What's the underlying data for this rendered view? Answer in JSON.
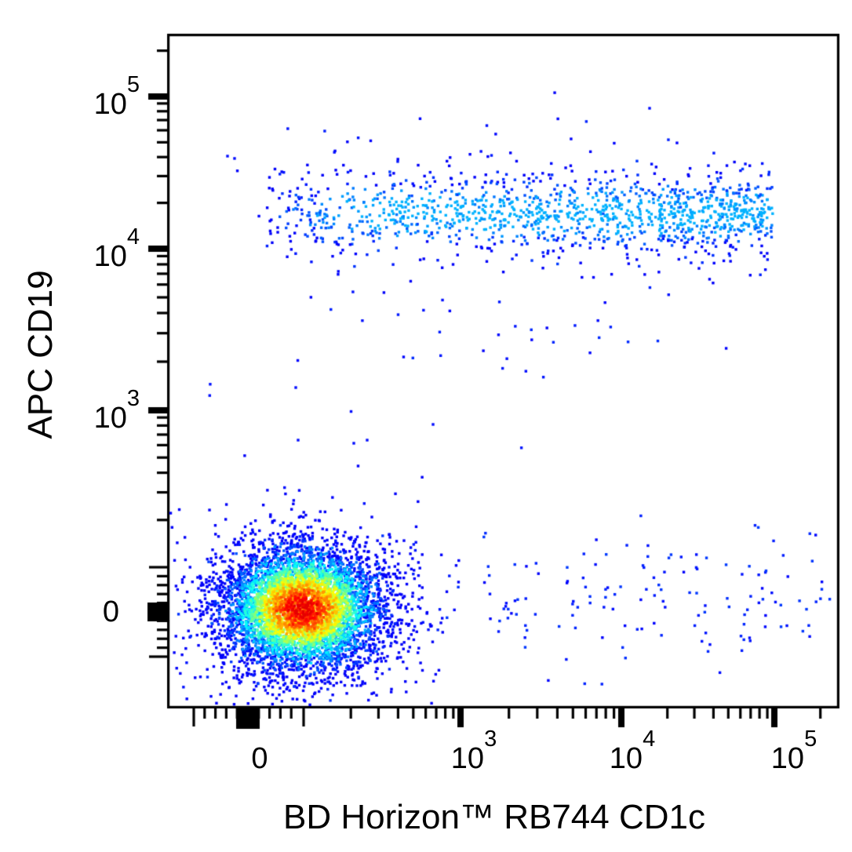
{
  "page": {
    "background": "#ffffff",
    "plot_border_color": "#000000"
  },
  "labels": {
    "x_title": "BD Horizon™ RB744 CD1c",
    "y_title": "APC CD19",
    "y_ticks": [
      {
        "base": "10",
        "exp": "5"
      },
      {
        "base": "10",
        "exp": "4"
      },
      {
        "base": "10",
        "exp": "3"
      },
      {
        "base": "0",
        "exp": ""
      }
    ],
    "x_ticks": [
      {
        "base": "0",
        "exp": ""
      },
      {
        "base": "10",
        "exp": "3"
      },
      {
        "base": "10",
        "exp": "4"
      },
      {
        "base": "10",
        "exp": "5"
      }
    ]
  },
  "chart_data": {
    "type": "scatter",
    "subtype": "flow-cytometry pseudocolor density dot plot",
    "title": "",
    "xlabel": "BD Horizon™ RB744 CD1c",
    "ylabel": "APC CD19",
    "grid": false,
    "legend": false,
    "x_axis": {
      "scale": "biexponential (logicle)",
      "major_tick_values": [
        0,
        1000,
        10000,
        100000
      ],
      "displayed_range": [
        -300,
        250000
      ]
    },
    "y_axis": {
      "scale": "biexponential (logicle)",
      "major_tick_values": [
        0,
        1000,
        10000,
        100000
      ],
      "displayed_range": [
        -300,
        250000
      ]
    },
    "point_color_scale": {
      "name": "jet pseudocolor by local density",
      "low": "#0000f8",
      "mid_low": "#00c8ff",
      "mid": "#00d000",
      "mid_high": "#ffe000",
      "high": "#e00000"
    },
    "populations": [
      {
        "name": "CD1c- CD19- lymphocytes (dense double-negative cluster)",
        "approx_n": 6250,
        "x_median": 95,
        "y_median": 5,
        "note": "red/orange core grading through yellow, green, cyan to blue halo"
      },
      {
        "name": "CD19+ B cells, heterogeneous CD1c",
        "approx_n": 1400,
        "y_median": 17000,
        "y_range": [
          3500,
          90000
        ],
        "x_range": [
          -100,
          70000
        ],
        "note": "blue dots with sparse cyan in dense mid-band"
      },
      {
        "name": "CD19- CD1c+ scattered events",
        "approx_n": 165,
        "y_range": [
          -150,
          500
        ],
        "x_range": [
          600,
          120000
        ],
        "note": "sparse blue dots along bottom right"
      },
      {
        "name": "rare intermediate events",
        "approx_n": 16,
        "x_range": [
          -100,
          2000
        ],
        "y_range": [
          300,
          90000
        ],
        "note": "isolated blue dots between the two main populations"
      }
    ],
    "render_populations": [
      {
        "kind": "gauss2d",
        "n": 5600,
        "cx": 385,
        "cy": 776,
        "sx": 52,
        "sy": 40,
        "dsx": 52,
        "dsy": 40,
        "t_gain": 1.05,
        "t_bias": -0.18,
        "t_noise": 0.36
      },
      {
        "kind": "gauss2d",
        "n": 650,
        "cx": 385,
        "cy": 776,
        "sx": 80,
        "sy": 62,
        "dsx": 52,
        "dsy": 40,
        "t_gain": 1.05,
        "t_bias": -0.14,
        "t_noise": 0.4
      },
      {
        "kind": "band",
        "n": 1250,
        "x0": 330,
        "xw": 655,
        "xpow": 0.72,
        "cy": 272,
        "sy": 27,
        "t_gain": 0.34,
        "t_bias": -0.16,
        "t_noise": 0.18,
        "t_cap": 0.23
      },
      {
        "kind": "band",
        "n": 70,
        "x0": 340,
        "xw": 645,
        "xpow": 0.72,
        "cy": 272,
        "sy": 58,
        "t_gain": 0.18,
        "t_bias": -0.1,
        "t_noise": 0.1,
        "t_cap": 0.18
      },
      {
        "kind": "box",
        "n": 30,
        "x": [
          400,
          930
        ],
        "y": [
          360,
          480
        ],
        "t_max": 0.06
      },
      {
        "kind": "box",
        "n": 22,
        "x": [
          290,
          870
        ],
        "y": [
          150,
          235
        ],
        "t_max": 0.05
      },
      {
        "kind": "boxg",
        "n": 150,
        "x": [
          550,
          1058
        ],
        "cy": 765,
        "sy": 42,
        "yclip": [
          612,
          872
        ],
        "t_max": 0.08
      },
      {
        "kind": "box",
        "n": 12,
        "x": [
          450,
          555
        ],
        "y": [
          690,
          830
        ],
        "t_max": 0.05
      },
      {
        "kind": "box",
        "n": 9,
        "x": [
          260,
          700
        ],
        "y": [
          445,
          640
        ],
        "t_max": 0.05
      },
      {
        "kind": "points",
        "t": 0.02,
        "pts": [
          [
            828,
            138
          ],
          [
            290,
            199
          ],
          [
            377,
            494
          ],
          [
            380,
            561
          ],
          [
            451,
            565
          ],
          [
            468,
            561
          ],
          [
            552,
            541
          ]
        ]
      }
    ]
  }
}
